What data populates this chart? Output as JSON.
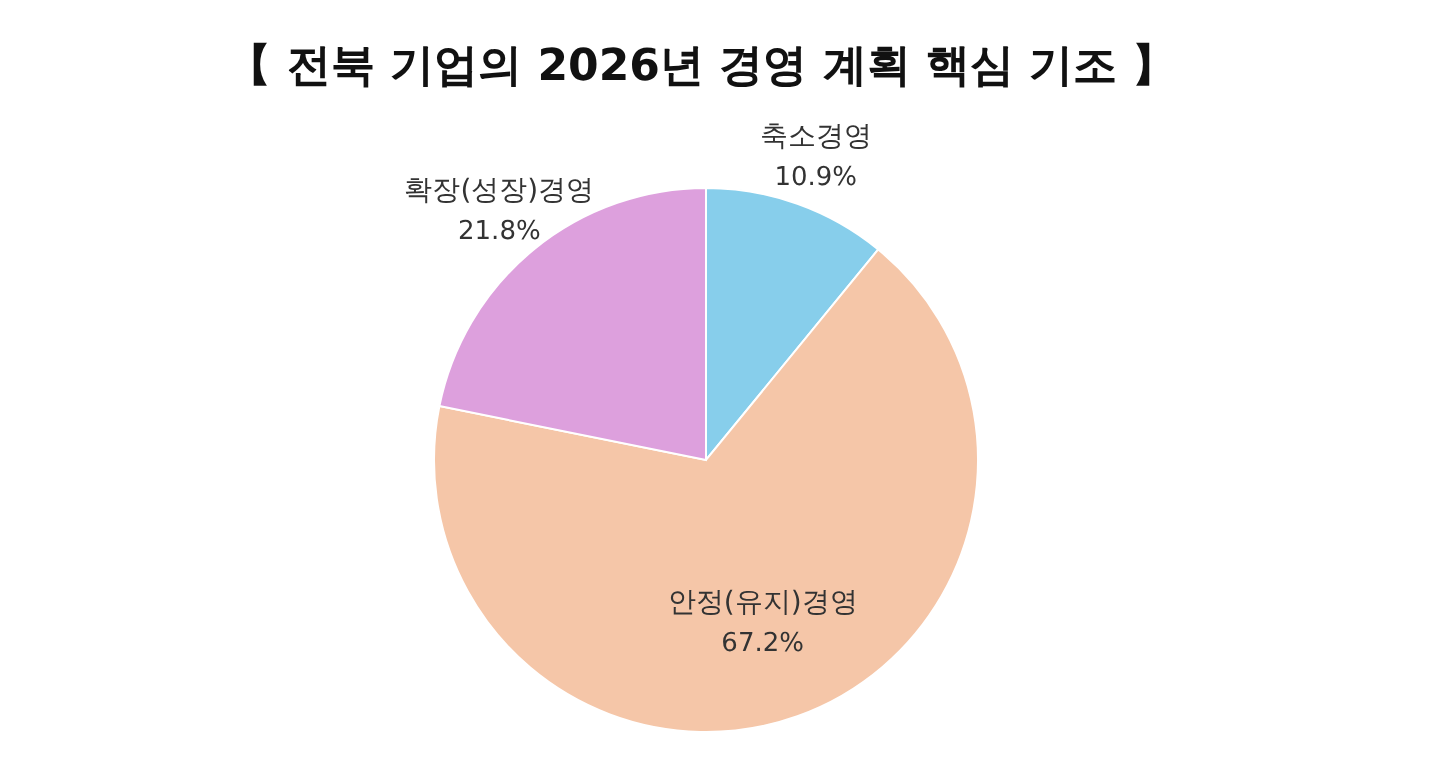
{
  "chart_data": {
    "type": "pie",
    "title": "【 전북 기업의 2026년 경영 계획 핵심 기조 】",
    "categories": [
      "축소경영",
      "안정(유지)경영",
      "확장(성장)경영"
    ],
    "values": [
      10.9,
      67.2,
      21.8
    ],
    "value_labels": [
      "10.9%",
      "67.2%",
      "21.8%"
    ],
    "colors": [
      "#87ceeb",
      "#f5c6a8",
      "#dda0dd"
    ],
    "legend": false
  }
}
